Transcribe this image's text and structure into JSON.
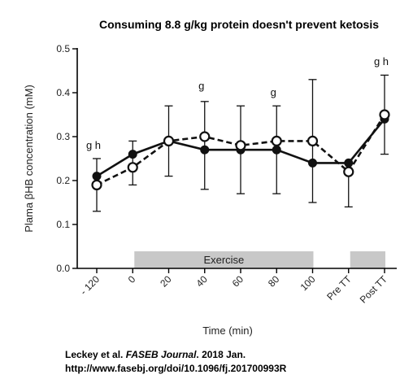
{
  "chart_data": {
    "type": "line",
    "title": "Consuming 8.8 g/kg protein doesn't prevent ketosis",
    "xlabel": "Time (min)",
    "ylabel": "Plama βHB concentration (mM)",
    "categories": [
      "- 120",
      "0",
      "20",
      "40",
      "60",
      "80",
      "100",
      "Pre TT",
      "Post TT"
    ],
    "ylim": [
      0,
      0.5
    ],
    "yticks": [
      "0.0",
      "0.1",
      "0.2",
      "0.3",
      "0.4",
      "0.5"
    ],
    "grid": false,
    "series": [
      {
        "style": "solid-filled-circles",
        "color": "#111111",
        "values": [
          0.21,
          0.26,
          0.29,
          0.27,
          0.27,
          0.27,
          0.24,
          0.24,
          0.34
        ],
        "err_high": [
          0.25,
          0.29,
          0.37,
          0.38,
          0.37,
          0.37,
          0.43,
          0.24,
          0.44
        ],
        "err_low": [
          0.13,
          0.19,
          0.21,
          0.18,
          0.17,
          0.17,
          0.15,
          0.14,
          0.26
        ]
      },
      {
        "style": "dashed-open-circles",
        "color": "#111111",
        "values": [
          0.19,
          0.23,
          0.29,
          0.3,
          0.28,
          0.29,
          0.29,
          0.22,
          0.35
        ],
        "err_high": [],
        "err_low": []
      }
    ],
    "bands": [
      {
        "label": "Exercise",
        "from_category": "0",
        "to_category": "100"
      },
      {
        "label": "",
        "from_category": "Pre TT",
        "to_category": "Post TT"
      }
    ],
    "annotations": [
      {
        "text": "g h",
        "category": "- 120",
        "value": 0.28
      },
      {
        "text": "g",
        "category": "40",
        "value": 0.415
      },
      {
        "text": "g",
        "category": "80",
        "value": 0.4
      },
      {
        "text": "g h",
        "category": "Post TT",
        "value": 0.47
      }
    ]
  },
  "citation": {
    "authors": "Leckey et al. ",
    "journal": "FASEB Journal",
    "rest": ". 2018 Jan.",
    "url": "http://www.fasebj.org/doi/10.1096/fj.201700993R"
  },
  "colors": {
    "band": "#c8c8c8",
    "line": "#111111"
  }
}
